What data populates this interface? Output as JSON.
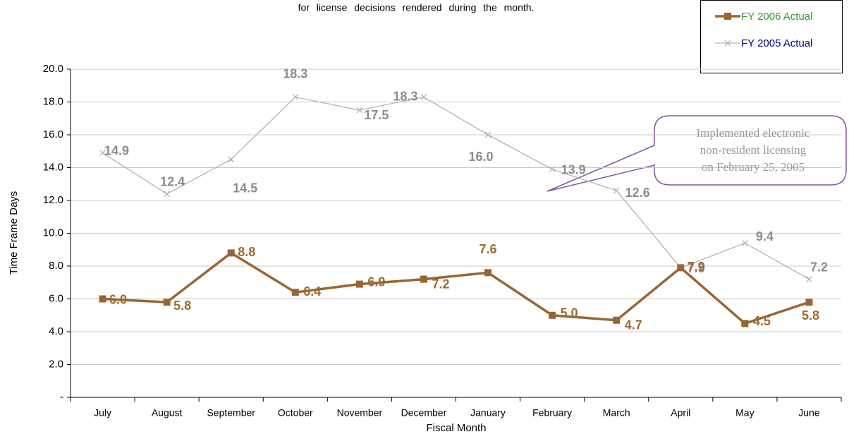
{
  "chart_data": {
    "type": "line",
    "subtitle": "for license decisions rendered during the month.",
    "x_label": "Fiscal Month",
    "y_label": "Time Frame Days",
    "categories": [
      "July",
      "August",
      "September",
      "October",
      "November",
      "December",
      "January",
      "February",
      "March",
      "April",
      "May",
      "June"
    ],
    "series": [
      {
        "name": "FY 2006 Actual",
        "color": "#996633",
        "marker": "square",
        "values": [
          6.0,
          5.8,
          8.8,
          6.4,
          6.9,
          7.2,
          7.6,
          5.0,
          4.7,
          7.9,
          4.5,
          5.8
        ],
        "value_labels": [
          "6.0",
          "5.8",
          "8.8",
          "6.4",
          "6.9",
          "7.2",
          "7.6",
          "5.0",
          "4.7",
          "7.9",
          "4.5",
          "5.8"
        ]
      },
      {
        "name": "FY 2005 Actual",
        "color": "#b3b3b3",
        "marker": "x",
        "values": [
          14.9,
          12.4,
          14.5,
          18.3,
          17.5,
          18.3,
          16.0,
          13.9,
          12.6,
          7.9,
          9.4,
          7.2
        ],
        "value_labels": [
          "14.9",
          "12.4",
          "14.5",
          "18.3",
          "17.5",
          "18.3",
          "16.0",
          "13.9",
          "12.6",
          "7.9",
          "9.4",
          "7.2"
        ]
      }
    ],
    "ylim": [
      0,
      20
    ],
    "yticks": [
      {
        "value": 0,
        "label": "-"
      },
      {
        "value": 2,
        "label": "2.0"
      },
      {
        "value": 4,
        "label": "4.0"
      },
      {
        "value": 6,
        "label": "6.0"
      },
      {
        "value": 8,
        "label": "8.0"
      },
      {
        "value": 10,
        "label": "10.0"
      },
      {
        "value": 12,
        "label": "12.0"
      },
      {
        "value": 14,
        "label": "14.0"
      },
      {
        "value": 16,
        "label": "16.0"
      },
      {
        "value": 18,
        "label": "18.0"
      },
      {
        "value": 20,
        "label": "20.0"
      }
    ],
    "grid": true,
    "legend": "top-right",
    "annotation": [
      "Implemented electronic",
      "non-resident licensing",
      "on February 25, 2005"
    ]
  }
}
